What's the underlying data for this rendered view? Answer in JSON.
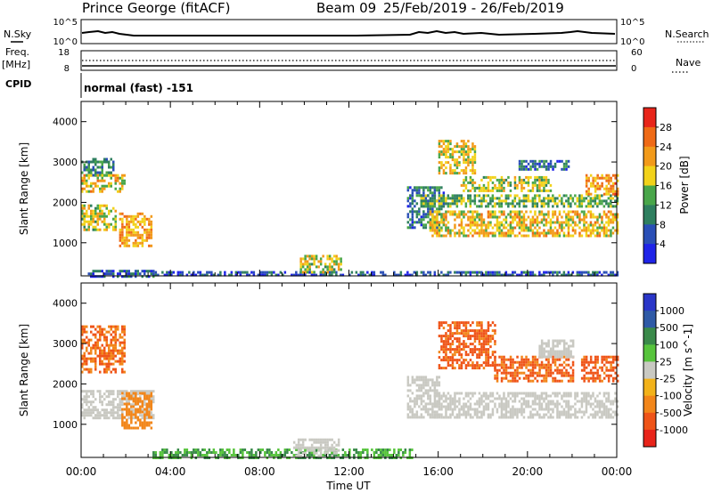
{
  "header": {
    "radar": "Prince George (fitACF)",
    "beam": "Beam 09",
    "date_range": "25/Feb/2019 - 26/Feb/2019"
  },
  "aux": {
    "nsky_label": "N.Sky",
    "nsearch_label": "N.Search",
    "nsky_ticks": [
      "10^5",
      "10^0"
    ],
    "nsearch_ticks": [
      "10^5",
      "10^0"
    ],
    "freq_label": "Freq.",
    "freq_unit": "[MHz]",
    "freq_ticks": [
      "18",
      "8"
    ],
    "nave_label": "Nave",
    "nave_ticks": [
      "60",
      "0"
    ],
    "cpid_label": "CPID",
    "cpid_value": "normal (fast) -151"
  },
  "colors": {
    "power": [
      "#1f24e8",
      "#2a4fb6",
      "#2f7f5f",
      "#49a64a",
      "#f2d21a",
      "#f29a1a",
      "#ef6a16",
      "#e8251a"
    ],
    "velocity": [
      "#2a36c8",
      "#2f5aa6",
      "#3a8a4a",
      "#57c43c",
      "#c9c9c2",
      "#f2b21a",
      "#f2861a",
      "#ef5418",
      "#e8241a"
    ],
    "ground_scatter": "#c9c9c2"
  },
  "chart_data": [
    {
      "type": "heatmap",
      "title": "",
      "xlabel": "Time UT",
      "ylabel": "Slant Range [km]",
      "colorbar_label": "Power [dB]",
      "colorbar_ticks": [
        "4",
        "8",
        "12",
        "16",
        "20",
        "24",
        "28"
      ],
      "x_ticks": [
        "00:00",
        "04:00",
        "08:00",
        "12:00",
        "16:00",
        "20:00",
        "00:00"
      ],
      "y_ticks": [
        "1000",
        "2000",
        "3000",
        "4000"
      ],
      "xlim_hours": [
        0,
        24
      ],
      "ylim_km": [
        180,
        4500
      ],
      "regions": [
        {
          "t0": 0.0,
          "t1": 1.4,
          "r0": 2700,
          "r1": 3100,
          "value": 11
        },
        {
          "t0": 0.0,
          "t1": 1.9,
          "r0": 2250,
          "r1": 2700,
          "value": 19
        },
        {
          "t0": 0.0,
          "t1": 1.5,
          "r0": 1300,
          "r1": 1950,
          "value": 17
        },
        {
          "t0": 1.7,
          "t1": 3.1,
          "r0": 900,
          "r1": 1750,
          "value": 21
        },
        {
          "t0": 0.3,
          "t1": 3.2,
          "r0": 180,
          "r1": 330,
          "value": 8
        },
        {
          "t0": 3.2,
          "t1": 15.0,
          "r0": 180,
          "r1": 300,
          "value": 7
        },
        {
          "t0": 9.8,
          "t1": 11.6,
          "r0": 250,
          "r1": 700,
          "value": 17
        },
        {
          "t0": 14.6,
          "t1": 16.2,
          "r0": 1350,
          "r1": 2400,
          "value": 10
        },
        {
          "t0": 16.0,
          "t1": 17.6,
          "r0": 2700,
          "r1": 3550,
          "value": 18
        },
        {
          "t0": 17.0,
          "t1": 21.0,
          "r0": 2300,
          "r1": 2650,
          "value": 16
        },
        {
          "t0": 19.5,
          "t1": 21.8,
          "r0": 2800,
          "r1": 3050,
          "value": 9
        },
        {
          "t0": 15.2,
          "t1": 24.0,
          "r0": 1900,
          "r1": 2200,
          "value": 14
        },
        {
          "t0": 15.6,
          "t1": 24.0,
          "r0": 1200,
          "r1": 1800,
          "value": 19
        },
        {
          "t0": 22.6,
          "t1": 24.0,
          "r0": 2200,
          "r1": 2700,
          "value": 22
        },
        {
          "t0": 15.0,
          "t1": 24.0,
          "r0": 180,
          "r1": 300,
          "value": 8
        }
      ]
    },
    {
      "type": "heatmap",
      "title": "",
      "xlabel": "Time UT",
      "ylabel": "Slant Range [km]",
      "colorbar_label": "Velocity [m s^-1]",
      "colorbar_ticks": [
        "1000",
        "500",
        "100",
        "25",
        "-25",
        "-100",
        "-500",
        "-1000"
      ],
      "x_ticks": [
        "00:00",
        "04:00",
        "08:00",
        "12:00",
        "16:00",
        "20:00",
        "00:00"
      ],
      "y_ticks": [
        "1000",
        "2000",
        "3000",
        "4000"
      ],
      "xlim_hours": [
        0,
        24
      ],
      "ylim_km": [
        180,
        4500
      ],
      "regions": [
        {
          "t0": 0.0,
          "t1": 1.9,
          "r0": 2300,
          "r1": 3450,
          "value": -300
        },
        {
          "t0": 0.0,
          "t1": 3.2,
          "r0": 1150,
          "r1": 1850,
          "value": 0
        },
        {
          "t0": 1.8,
          "t1": 3.1,
          "r0": 900,
          "r1": 1800,
          "value": -150
        },
        {
          "t0": 3.2,
          "t1": 14.8,
          "r0": 180,
          "r1": 400,
          "value": 60
        },
        {
          "t0": 9.5,
          "t1": 11.5,
          "r0": 250,
          "r1": 650,
          "value": 0
        },
        {
          "t0": 14.6,
          "t1": 16.0,
          "r0": 1200,
          "r1": 2200,
          "value": 0
        },
        {
          "t0": 16.0,
          "t1": 18.5,
          "r0": 2400,
          "r1": 3550,
          "value": -400
        },
        {
          "t0": 18.5,
          "t1": 22.0,
          "r0": 2100,
          "r1": 2700,
          "value": -350
        },
        {
          "t0": 20.5,
          "t1": 22.0,
          "r0": 2700,
          "r1": 3100,
          "value": 0
        },
        {
          "t0": 15.8,
          "t1": 24.0,
          "r0": 1200,
          "r1": 1800,
          "value": 0
        },
        {
          "t0": 22.4,
          "t1": 24.0,
          "r0": 2100,
          "r1": 2700,
          "value": -450
        }
      ]
    }
  ]
}
